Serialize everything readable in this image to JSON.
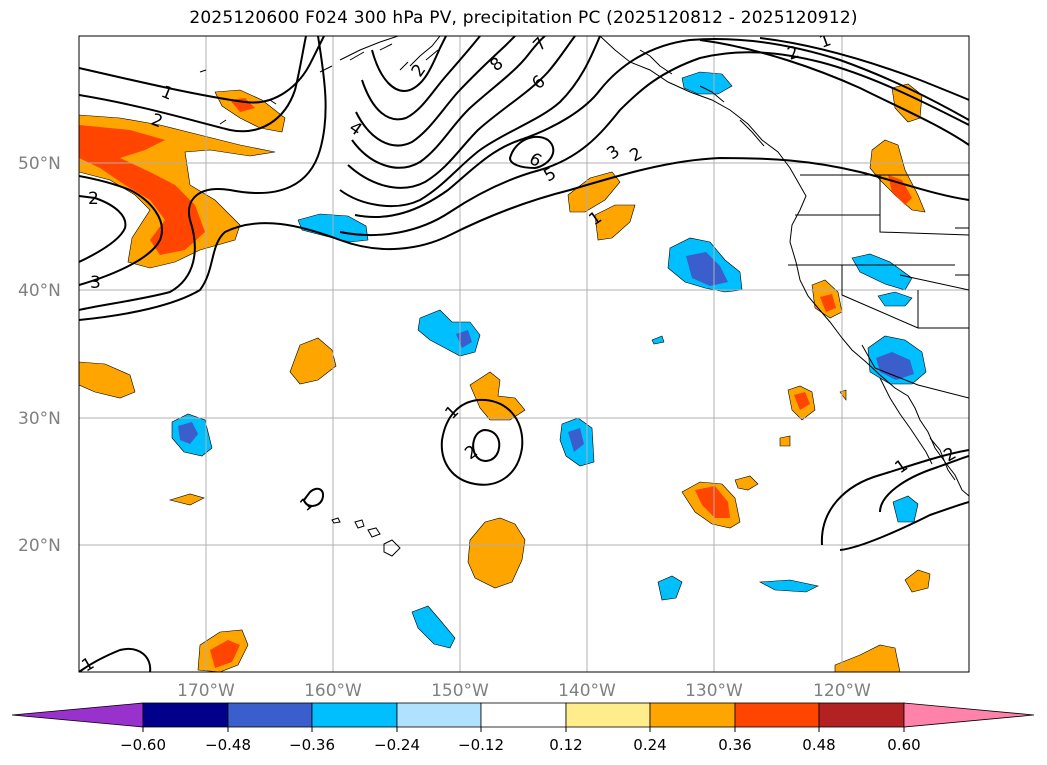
{
  "title": "2025120600 F024 300 hPa PV, precipitation PC (2025120812 - 2025120912)",
  "map": {
    "projection": "PlateCarree",
    "lon_range": [
      -180,
      -110
    ],
    "lat_range": [
      10,
      60
    ],
    "latitude_ticks": [
      {
        "value": 50,
        "label": "50°N"
      },
      {
        "value": 40,
        "label": "40°N"
      },
      {
        "value": 30,
        "label": "30°N"
      },
      {
        "value": 20,
        "label": "20°N"
      }
    ],
    "longitude_ticks": [
      {
        "value": -170,
        "label": "170°W"
      },
      {
        "value": -160,
        "label": "160°W"
      },
      {
        "value": -150,
        "label": "150°W"
      },
      {
        "value": -140,
        "label": "140°W"
      },
      {
        "value": -130,
        "label": "130°W"
      },
      {
        "value": -120,
        "label": "120°W"
      }
    ],
    "tick_label_color": "#808080",
    "grid": true
  },
  "contour_labels": [
    "1",
    "2",
    "3",
    "4",
    "5",
    "6",
    "7",
    "8",
    "1",
    "2",
    "2",
    "3",
    "1",
    "2",
    "1",
    "2",
    "1"
  ],
  "colorbar": {
    "levels": [
      "−0.60",
      "−0.48",
      "−0.36",
      "−0.24",
      "−0.12",
      "0.12",
      "0.24",
      "0.36",
      "0.48",
      "0.60"
    ],
    "colors": [
      "#9932cc",
      "#00008b",
      "#3a5fcd",
      "#00bfff",
      "#b0e2ff",
      "#ffffff",
      "#ffec8b",
      "#ffa500",
      "#ff4500",
      "#b22222",
      "#ff82ab"
    ],
    "extend": "both"
  }
}
